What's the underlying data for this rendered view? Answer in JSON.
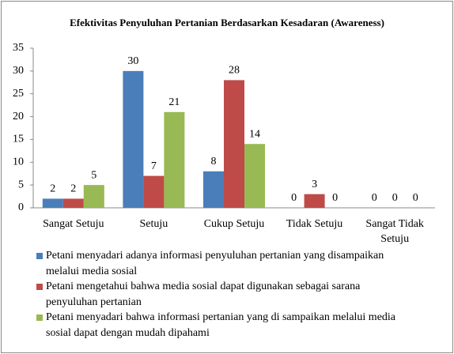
{
  "chart_data": {
    "type": "bar",
    "title": "Efektivitas Penyuluhan Pertanian Berdasarkan Kesadaran (Awareness)",
    "categories": [
      "Sangat Setuju",
      "Setuju",
      "Cukup Setuju",
      "Tidak Setuju",
      "Sangat Tidak Setuju"
    ],
    "series": [
      {
        "name": "Petani menyadari adanya informasi penyuluhan pertanian yang disampaikan melalui media sosial",
        "color": "#4a7ebb",
        "values": [
          2,
          30,
          8,
          0,
          0
        ]
      },
      {
        "name": "Petani mengetahui bahwa media sosial dapat digunakan sebagai sarana penyuluhan pertanian",
        "color": "#be4b48",
        "values": [
          2,
          7,
          28,
          3,
          0
        ]
      },
      {
        "name": "Petani menyadari bahwa informasi pertanian yang di sampaikan melalui media sosial dapat dengan mudah dipahami",
        "color": "#98b954",
        "values": [
          5,
          21,
          14,
          0,
          0
        ]
      }
    ],
    "ylim": [
      0,
      35
    ],
    "yticks": [
      0,
      5,
      10,
      15,
      20,
      25,
      30,
      35
    ],
    "grid": false,
    "legend": "bottom"
  }
}
